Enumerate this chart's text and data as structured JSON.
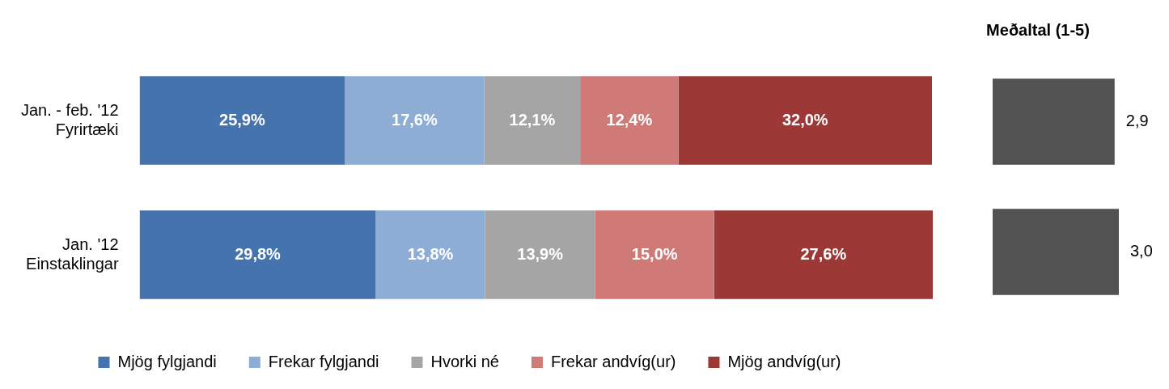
{
  "chart_data": [
    {
      "type": "bar",
      "orientation": "horizontal",
      "stacked": true,
      "categories": [
        "Jan. - feb. '12\nFyrirtæki",
        "Jan. '12\nEinstaklingar"
      ],
      "legend": "bottom",
      "series": [
        {
          "name": "Mjög fylgjandi",
          "color": "#4573ad",
          "values": [
            25.9,
            29.8
          ],
          "value_labels": [
            "25,9%",
            "29,8%"
          ]
        },
        {
          "name": "Frekar fylgjandi",
          "color": "#8eadd5",
          "values": [
            17.6,
            13.8
          ],
          "value_labels": [
            "17,6%",
            "13,8%"
          ]
        },
        {
          "name": "Hvorki né",
          "color": "#a5a5a5",
          "values": [
            12.1,
            13.9
          ],
          "value_labels": [
            "12,1%",
            "13,9%"
          ]
        },
        {
          "name": "Frekar andvíg(ur)",
          "color": "#d07a77",
          "values": [
            12.4,
            15.0
          ],
          "value_labels": [
            "12,4%",
            "15,0%"
          ]
        },
        {
          "name": "Mjög andvíg(ur)",
          "color": "#9c3836",
          "values": [
            32.0,
            27.6
          ],
          "value_labels": [
            "32,0%",
            "27,6%"
          ]
        }
      ]
    },
    {
      "type": "bar",
      "orientation": "horizontal",
      "title": "Meðaltal (1-5)",
      "categories": [
        null,
        null
      ],
      "legend": false,
      "series": [
        {
          "color": "#525252",
          "values": [
            2.9,
            3.0
          ],
          "value_labels": [
            "2,9",
            "3,0"
          ]
        }
      ]
    }
  ]
}
